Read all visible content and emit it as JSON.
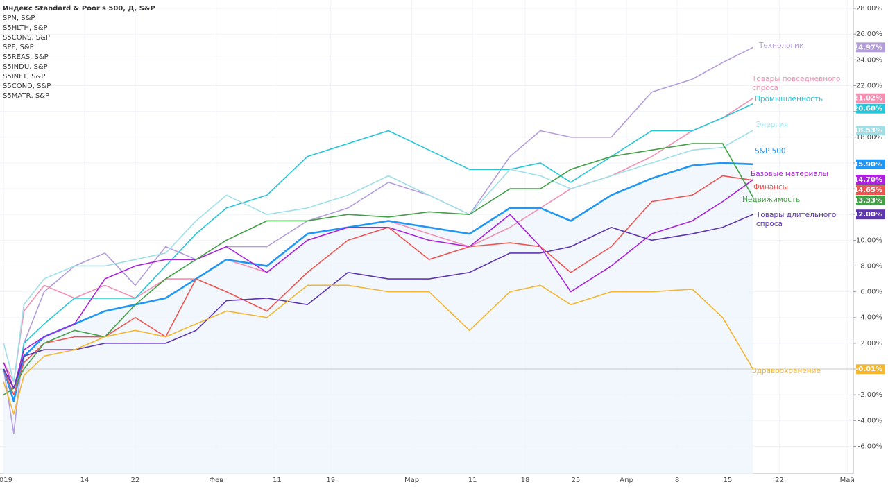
{
  "chart_data": {
    "type": "line",
    "symbols": [
      "Индекс Standard & Poor's 500, Д, S&P",
      "SPN, S&P",
      "S5HLTH, S&P",
      "S5CONS, S&P",
      "SPF, S&P",
      "S5REAS, S&P",
      "S5INDU, S&P",
      "S5INFT, S&P",
      "S5COND, S&P",
      "S5MATR, S&P"
    ],
    "x": [
      0,
      1,
      2,
      4,
      7,
      10,
      13,
      16,
      19,
      22,
      26,
      30,
      34,
      38,
      42,
      46,
      50,
      53,
      56,
      60,
      64,
      68,
      71,
      74
    ],
    "xlim": [
      -0.36,
      83.9
    ],
    "xticks": [
      {
        "value": 0,
        "label": "2019"
      },
      {
        "value": 8,
        "label": "14"
      },
      {
        "value": 13,
        "label": "22"
      },
      {
        "value": 21,
        "label": "Фев"
      },
      {
        "value": 27,
        "label": "11"
      },
      {
        "value": 32.3,
        "label": "19"
      },
      {
        "value": 40.3,
        "label": "Мар"
      },
      {
        "value": 46.3,
        "label": "11"
      },
      {
        "value": 51.5,
        "label": "18"
      },
      {
        "value": 56.5,
        "label": "25"
      },
      {
        "value": 61.5,
        "label": "Апр"
      },
      {
        "value": 66.5,
        "label": "8"
      },
      {
        "value": 71.5,
        "label": "15"
      },
      {
        "value": 76.6,
        "label": "22"
      },
      {
        "value": 83.3,
        "label": "Май"
      }
    ],
    "ylim": [
      -8.13,
      28.65
    ],
    "yticks": [
      {
        "value": -6,
        "label": "-6.00%"
      },
      {
        "value": -4,
        "label": "-4.00%"
      },
      {
        "value": -2,
        "label": "-2.00%"
      },
      {
        "value": 0,
        "label": "0.00%"
      },
      {
        "value": 2,
        "label": "2.00%"
      },
      {
        "value": 4,
        "label": "4.00%"
      },
      {
        "value": 6,
        "label": "6.00%"
      },
      {
        "value": 8,
        "label": "8.00%"
      },
      {
        "value": 10,
        "label": "10.00%"
      },
      {
        "value": 12,
        "label": "12.00%"
      },
      {
        "value": 14,
        "label": "14.00%"
      },
      {
        "value": 16,
        "label": "16.00%"
      },
      {
        "value": 18,
        "label": "18.00%"
      },
      {
        "value": 20,
        "label": "20.00%"
      },
      {
        "value": 22,
        "label": "22.00%"
      },
      {
        "value": 24,
        "label": "24.00%"
      },
      {
        "value": 26,
        "label": "26.00%"
      },
      {
        "value": 28,
        "label": "28.00%"
      }
    ],
    "grid": true,
    "series": [
      {
        "name": "Технологии",
        "color": "#b39ddb",
        "values": [
          0,
          -5,
          2,
          6,
          8,
          9,
          6.5,
          9.5,
          8.5,
          9.5,
          9.5,
          11.5,
          12.5,
          14.5,
          13.5,
          12,
          16.5,
          18.5,
          18,
          18,
          21.5,
          22.5,
          23.8,
          24.97
        ],
        "value_labels": [
          "24.97%"
        ]
      },
      {
        "name": "Товары повседневного спроса",
        "color": "#f48fb1",
        "values": [
          0.5,
          -1,
          4.5,
          6.5,
          5.5,
          6.5,
          5.5,
          7,
          7,
          8.5,
          7.5,
          10,
          11,
          11.5,
          10.5,
          9.5,
          11,
          12.5,
          14,
          15,
          16.5,
          18.5,
          19.5,
          21.02
        ],
        "value_labels": [
          "21.02%"
        ]
      },
      {
        "name": "Промышленность",
        "color": "#26c6da",
        "values": [
          0,
          -2.5,
          2,
          3.5,
          5.5,
          5.5,
          5.5,
          8,
          10.5,
          12.5,
          13.5,
          16.5,
          17.5,
          18.5,
          17,
          15.5,
          15.5,
          16,
          14.5,
          16.5,
          18.5,
          18.5,
          19.5,
          20.6
        ],
        "value_labels": [
          "20.60%"
        ]
      },
      {
        "name": "Энергия",
        "color": "#9fdfe8",
        "values": [
          2,
          -1,
          5,
          7,
          8,
          8,
          8.5,
          9,
          11.5,
          13.5,
          12,
          12.5,
          13.5,
          15,
          13.5,
          12,
          15.5,
          15,
          14,
          15,
          16,
          17,
          17.2,
          18.53
        ],
        "value_labels": [
          "18.53%"
        ]
      },
      {
        "name": "S&P 500",
        "color": "#2196f3",
        "values": [
          0,
          -2.5,
          1,
          2.5,
          3.5,
          4.5,
          5,
          5.5,
          7,
          8.5,
          8,
          10.5,
          11,
          11.5,
          11,
          10.5,
          12.5,
          12.5,
          11.5,
          13.5,
          14.8,
          15.8,
          16,
          15.9
        ],
        "value_labels": [
          "15.90%"
        ]
      },
      {
        "name": "Базовые материалы",
        "color": "#aa22dd",
        "values": [
          0.5,
          -1.5,
          1.5,
          2.5,
          3.5,
          7,
          8,
          8.5,
          8.5,
          9.5,
          7.5,
          10,
          11,
          11,
          10,
          9.5,
          12,
          9.5,
          6,
          8,
          10.5,
          11.5,
          13,
          14.7
        ],
        "value_labels": [
          "14.70%"
        ]
      },
      {
        "name": "Финансы",
        "color": "#ef5350",
        "values": [
          0,
          -2,
          0.5,
          2,
          2.5,
          2.5,
          4,
          2.5,
          7,
          6,
          4.5,
          7.5,
          10,
          11,
          8.5,
          9.5,
          9.8,
          9.5,
          7.5,
          9.5,
          13,
          13.5,
          15,
          14.65
        ],
        "value_labels": [
          "14.65%"
        ]
      },
      {
        "name": "Недвижимость",
        "color": "#43a047",
        "values": [
          -2,
          -1.5,
          0,
          2,
          3,
          2.5,
          5,
          7,
          8.5,
          10,
          11.5,
          11.5,
          12,
          11.8,
          12.2,
          12,
          14,
          14,
          15.5,
          16.5,
          17,
          17.5,
          17.5,
          13.33
        ],
        "value_labels": [
          "13.33%"
        ]
      },
      {
        "name": "Товары длительного спроса",
        "color": "#5e35b1",
        "values": [
          0,
          -1.5,
          1,
          1.5,
          1.5,
          2,
          2,
          2,
          3,
          5.3,
          5.5,
          5,
          7.5,
          7,
          7,
          7.5,
          9,
          9,
          9.5,
          11,
          10,
          10.5,
          11,
          12
        ],
        "value_labels": [
          "12.00%"
        ]
      },
      {
        "name": "Здравоохранение",
        "color": "#f5b731",
        "values": [
          -1,
          -3.5,
          -0.5,
          1,
          1.5,
          2.5,
          3,
          2.5,
          3.5,
          4.5,
          4,
          6.5,
          6.5,
          6,
          6,
          3,
          6,
          6.5,
          5,
          6,
          6,
          6.2,
          4,
          -0.01
        ],
        "value_labels": [
          "-0.01%"
        ]
      }
    ]
  }
}
